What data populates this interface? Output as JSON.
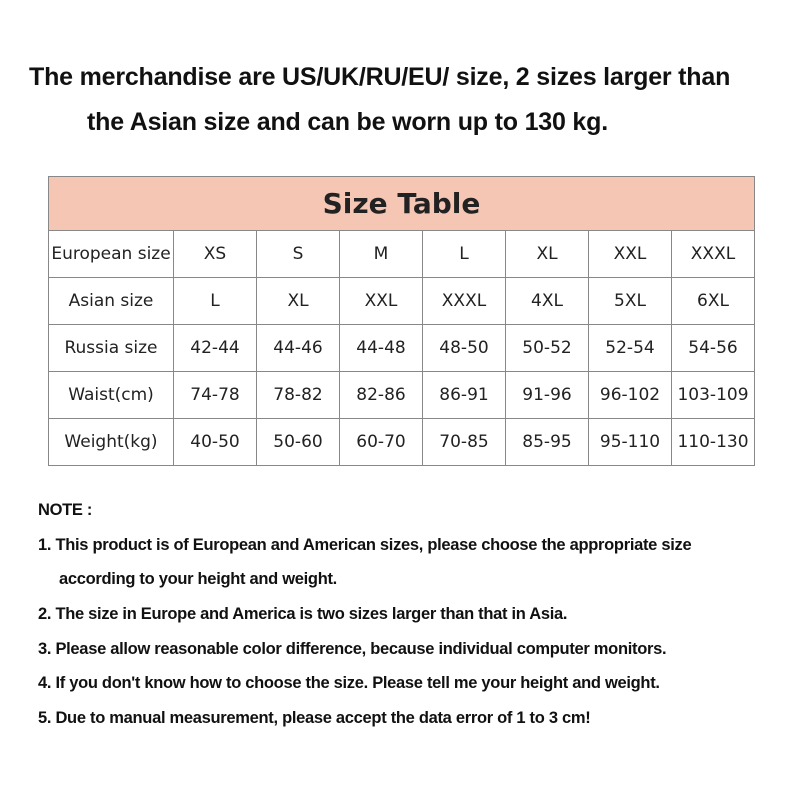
{
  "headline": {
    "line1": "The merchandise are US/UK/RU/EU/ size, 2 sizes larger than",
    "line2": "the Asian size and can be worn up to 130 kg."
  },
  "table": {
    "title": "Size Table",
    "header_color": "#f5c6b4",
    "rows": [
      {
        "label": "European size",
        "values": [
          "XS",
          "S",
          "M",
          "L",
          "XL",
          "XXL",
          "XXXL"
        ]
      },
      {
        "label": "Asian size",
        "values": [
          "L",
          "XL",
          "XXL",
          "XXXL",
          "4XL",
          "5XL",
          "6XL"
        ]
      },
      {
        "label": "Russia size",
        "values": [
          "42-44",
          "44-46",
          "44-48",
          "48-50",
          "50-52",
          "52-54",
          "54-56"
        ]
      },
      {
        "label": "Waist(cm)",
        "values": [
          "74-78",
          "78-82",
          "82-86",
          "86-91",
          "91-96",
          "96-102",
          "103-109"
        ]
      },
      {
        "label": "Weight(kg)",
        "values": [
          "40-50",
          "50-60",
          "60-70",
          "70-85",
          "85-95",
          "95-110",
          "110-130"
        ]
      }
    ]
  },
  "notes": {
    "heading": "NOTE :",
    "items": [
      "1. This product is of European and American sizes, please choose the appropriate size",
      "according to your height and weight.",
      "2. The size in Europe and America is two sizes larger than that in Asia.",
      "3. Please allow reasonable color difference, because individual computer monitors.",
      "4. If you don't know how to choose the size. Please tell me your height and weight.",
      "5. Due to manual measurement, please accept the data error of 1 to 3 cm!"
    ]
  }
}
